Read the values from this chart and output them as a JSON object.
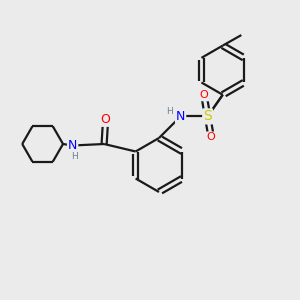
{
  "background_color": "#ebebeb",
  "bond_color": "#1a1a1a",
  "bond_width": 1.6,
  "atom_colors": {
    "N": "#0000ff",
    "O": "#ff0000",
    "S": "#cccc00",
    "H": "#708090",
    "C": "#1a1a1a"
  },
  "font_size_atom": 8,
  "font_size_H": 6.5
}
